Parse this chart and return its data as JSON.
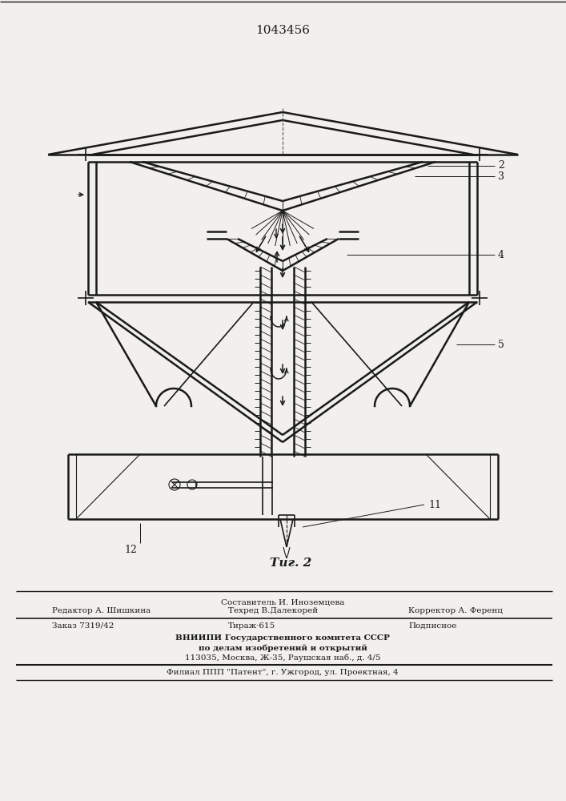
{
  "title": "1043456",
  "fig_label": "Τиг. 2",
  "bg_color": "#f2f0ec",
  "line_color": "#1a1a1a",
  "label_2": "2",
  "label_3": "3",
  "label_4": "4",
  "label_5": "5",
  "label_11": "11",
  "label_12": "12",
  "footer_line1": "Составитель И. Иноземцева",
  "footer_line2_left": "Редактор А. Шишкина",
  "footer_line2_mid": "Техред В.Далекорей",
  "footer_line2_right": "Корректор А. Ференц",
  "footer_line3_left": "Заказ 7319/42",
  "footer_line3_mid": "Тираж·615",
  "footer_line3_right": "Подписное",
  "footer_line4": "ВНИИПИ Государственного комитета СССР",
  "footer_line5": "по делам изобретений и открытий",
  "footer_line6": "113035, Москва, Ж-35, Раушская наб., д. 4/5",
  "footer_line7": "Филиал ППП \"Патент\", г. Ужгород, ул. Проектная, 4"
}
